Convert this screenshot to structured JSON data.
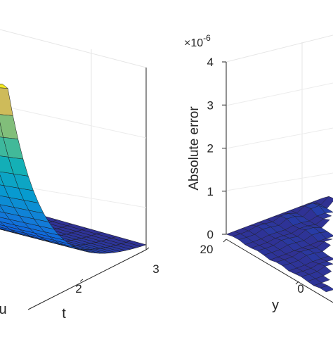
{
  "chart_data": [
    {
      "type": "surface",
      "title": "",
      "xlabel": "t",
      "zlabel": "",
      "x_ticks": [
        "2",
        "3"
      ],
      "colormap": "parula",
      "partial_label": "u",
      "note": "surface decays with t from a high ridge to nearly zero at t = 3"
    },
    {
      "type": "surface",
      "title": "",
      "zlabel": "Absolute error",
      "ylabel": "y",
      "z_multiplier": "×10",
      "z_exponent": "-6",
      "z_ticks": [
        "0",
        "1",
        "2",
        "3",
        "4"
      ],
      "zlim": [
        0,
        4
      ],
      "y_ticks": [
        "20",
        "0"
      ],
      "colormap": "parula",
      "note": "error surface is small and flat, near 0 across the visible domain"
    }
  ]
}
